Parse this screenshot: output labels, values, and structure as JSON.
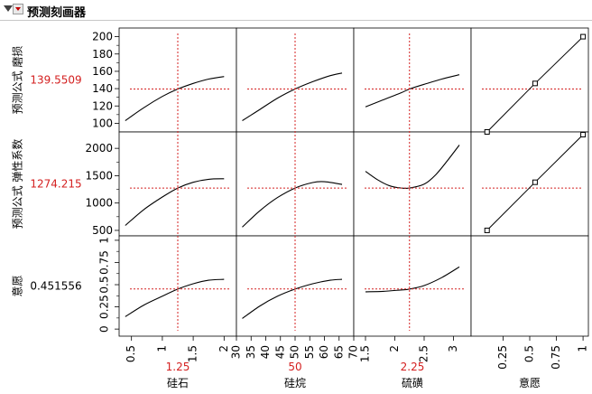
{
  "window": {
    "title": "预测刻画器"
  },
  "rows": [
    {
      "label": "预测公式 磨损",
      "value": "139.5509"
    },
    {
      "label": "预测公式 弹性系数",
      "value": "1274.215"
    },
    {
      "label": "意愿",
      "value": "0.451556"
    }
  ],
  "columns": [
    {
      "label": "硅石",
      "value": "1.25"
    },
    {
      "label": "硅烷",
      "value": "50"
    },
    {
      "label": "硫磺",
      "value": "2.25"
    },
    {
      "label": "意愿",
      "value": ""
    }
  ],
  "colors": {
    "red": "#d42020",
    "curve": "#000000",
    "frame": "#000000",
    "grid_line": "#bdbdbd"
  },
  "chart_data": {
    "type": "line",
    "yaxes": [
      {
        "min": 90,
        "max": 210,
        "ticks": [
          100,
          120,
          140,
          160,
          180,
          200
        ],
        "tick_labels": [
          "100",
          "120",
          "140",
          "160",
          "180",
          "200"
        ],
        "current": 139.5509
      },
      {
        "min": 400,
        "max": 2300,
        "ticks": [
          500,
          1000,
          1500,
          2000
        ],
        "tick_labels": [
          "500",
          "1000",
          "1500",
          "2000"
        ],
        "current": 1274.215
      },
      {
        "min": -0.08,
        "max": 1.05,
        "ticks": [
          0,
          0.25,
          0.5,
          0.75,
          1
        ],
        "tick_labels": [
          "0",
          "0.25",
          "0.5",
          "0.75",
          "1"
        ],
        "current": 0.451556
      }
    ],
    "xaxes": [
      {
        "min": 0.3,
        "max": 2.2,
        "ticks": [
          0.5,
          1,
          1.5,
          2
        ],
        "tick_labels": [
          "0.5",
          "1",
          "1.5",
          "2"
        ],
        "current": 1.25
      },
      {
        "min": 30,
        "max": 70,
        "ticks": [
          30,
          35,
          40,
          45,
          50,
          55,
          60,
          65,
          70
        ],
        "tick_labels": [
          "30",
          "35",
          "40",
          "45",
          "50",
          "55",
          "60",
          "65",
          "70"
        ],
        "current": 50
      },
      {
        "min": 1.3,
        "max": 3.3,
        "ticks": [
          1.5,
          2,
          2.5,
          3
        ],
        "tick_labels": [
          "1.5",
          "2",
          "2.5",
          "3"
        ],
        "current": 2.25
      },
      {
        "min": -0.05,
        "max": 1.05,
        "ticks": [
          0.25,
          0.5,
          0.75,
          1
        ],
        "tick_labels": [
          "0.25",
          "0.5",
          "0.75",
          "1"
        ],
        "current": null
      }
    ],
    "curves": [
      [
        {
          "x": [
            0.4,
            0.7,
            1.0,
            1.25,
            1.5,
            1.75,
            2.0
          ],
          "y": [
            103,
            118,
            131,
            139.6,
            146,
            151,
            154
          ]
        },
        {
          "x": [
            32,
            38,
            44,
            50,
            56,
            62,
            66
          ],
          "y": [
            103,
            116,
            129,
            139.6,
            148,
            155,
            158
          ]
        },
        {
          "x": [
            1.5,
            1.8,
            2.1,
            2.25,
            2.5,
            2.8,
            3.1
          ],
          "y": [
            119,
            127,
            135,
            139.6,
            145,
            151,
            156
          ]
        }
      ],
      [
        {
          "x": [
            0.4,
            0.7,
            1.0,
            1.25,
            1.5,
            1.75,
            2.0
          ],
          "y": [
            590,
            880,
            1110,
            1274,
            1380,
            1435,
            1445
          ]
        },
        {
          "x": [
            32,
            38,
            44,
            50,
            56,
            60,
            66
          ],
          "y": [
            560,
            860,
            1100,
            1274,
            1375,
            1390,
            1340
          ]
        },
        {
          "x": [
            1.5,
            1.7,
            1.9,
            2.1,
            2.25,
            2.5,
            2.7,
            2.9,
            3.1
          ],
          "y": [
            1580,
            1430,
            1320,
            1275,
            1274,
            1345,
            1520,
            1780,
            2060
          ]
        }
      ],
      [
        {
          "x": [
            0.4,
            0.7,
            1.0,
            1.25,
            1.5,
            1.75,
            2.0
          ],
          "y": [
            0.14,
            0.27,
            0.37,
            0.45,
            0.51,
            0.55,
            0.56
          ]
        },
        {
          "x": [
            32,
            38,
            44,
            50,
            56,
            62,
            66
          ],
          "y": [
            0.12,
            0.26,
            0.37,
            0.45,
            0.51,
            0.55,
            0.56
          ]
        },
        {
          "x": [
            1.5,
            1.8,
            2.1,
            2.25,
            2.5,
            2.8,
            3.1
          ],
          "y": [
            0.42,
            0.425,
            0.44,
            0.45,
            0.49,
            0.58,
            0.7
          ]
        }
      ]
    ],
    "desirability": [
      {
        "x": [
          0.1,
          0.55,
          1.0
        ],
        "y": [
          90,
          146,
          200
        ]
      },
      {
        "x": [
          0.1,
          0.55,
          1.0
        ],
        "y": [
          500,
          1380,
          2250
        ]
      }
    ]
  }
}
